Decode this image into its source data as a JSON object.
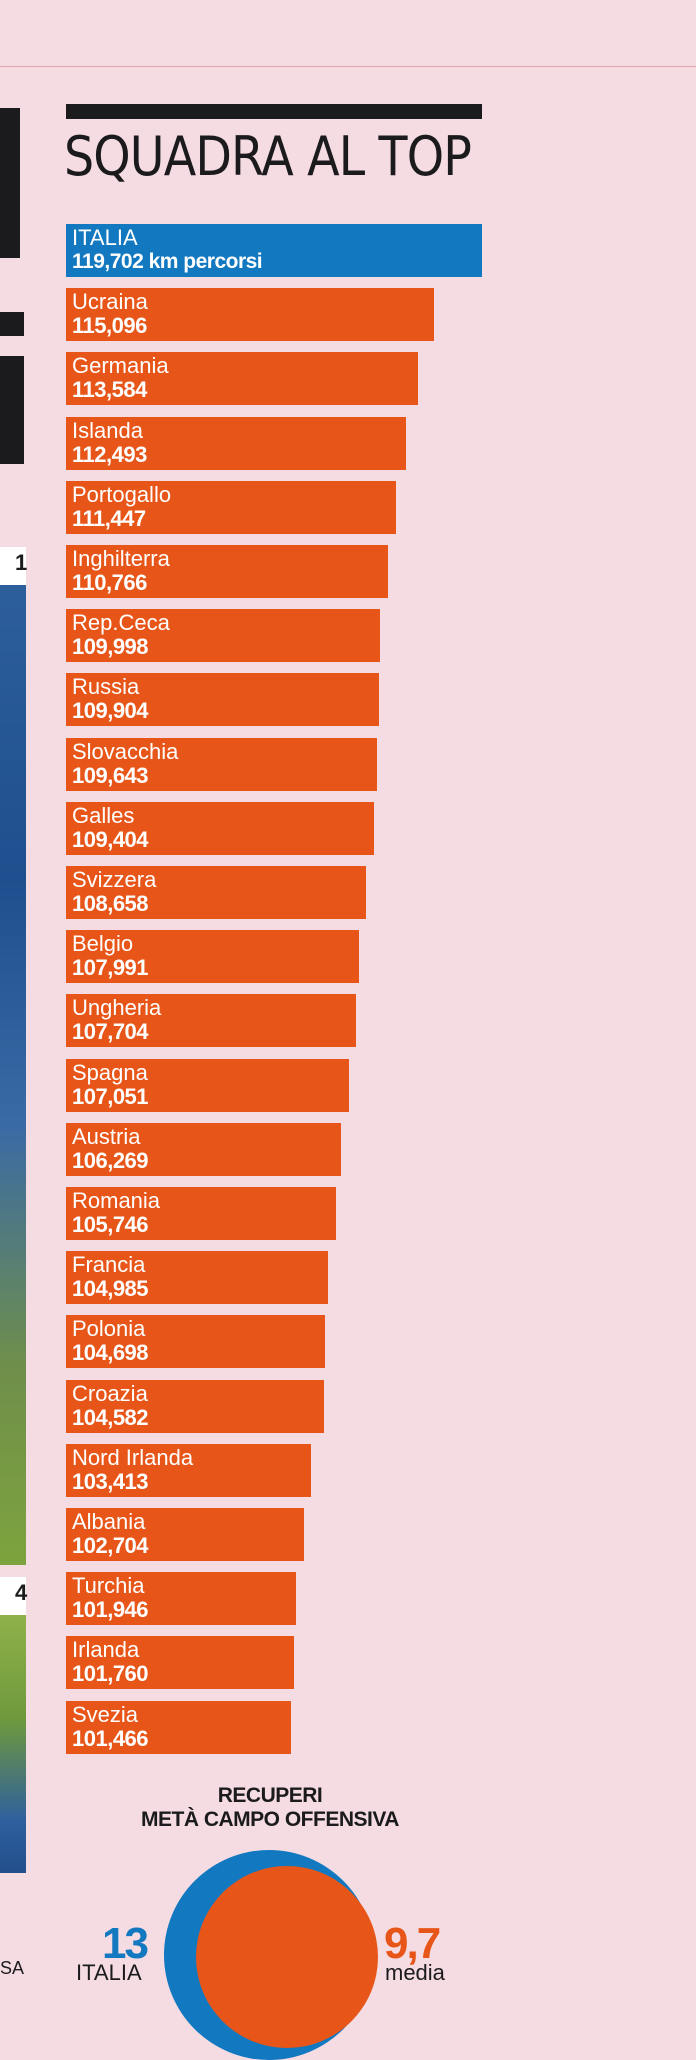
{
  "title": "SQUADRA AL TOP",
  "colors": {
    "highlight": "#1278c0",
    "bar": "#e75618",
    "text": "#1b1b1d",
    "background": "#f5dce2"
  },
  "chart_data": {
    "type": "bar",
    "orientation": "horizontal",
    "title": "SQUADRA AL TOP",
    "highlight": {
      "name": "ITALIA",
      "value_label": "119,702 km percorsi",
      "value": 119.702
    },
    "categories": [
      "Ucraina",
      "Germania",
      "Islanda",
      "Portogallo",
      "Inghilterra",
      "Rep.Ceca",
      "Russia",
      "Slovacchia",
      "Galles",
      "Svizzera",
      "Belgio",
      "Ungheria",
      "Spagna",
      "Austria",
      "Romania",
      "Francia",
      "Polonia",
      "Croazia",
      "Nord Irlanda",
      "Albania",
      "Turchia",
      "Irlanda",
      "Svezia"
    ],
    "value_labels": [
      "115,096",
      "113,584",
      "112,493",
      "111,447",
      "110,766",
      "109,998",
      "109,904",
      "109,643",
      "109,404",
      "108,658",
      "107,991",
      "107,704",
      "107,051",
      "106,269",
      "105,746",
      "104,985",
      "104,698",
      "104,582",
      "103,413",
      "102,704",
      "101,946",
      "101,760",
      "101,466"
    ],
    "values": [
      115.096,
      113.584,
      112.493,
      111.447,
      110.766,
      109.998,
      109.904,
      109.643,
      109.404,
      108.658,
      107.991,
      107.704,
      107.051,
      106.269,
      105.746,
      104.985,
      104.698,
      104.582,
      103.413,
      102.704,
      101.946,
      101.76,
      101.466
    ]
  },
  "recuperi": {
    "title_line1": "RECUPERI",
    "title_line2": "METÀ CAMPO OFFENSIVA",
    "italia_value": "13",
    "italia_label": "ITALIA",
    "media_value": "9,7",
    "media_label": "media"
  },
  "edge": {
    "num_top": "1",
    "num_bottom": "4",
    "fragment": "SA"
  }
}
